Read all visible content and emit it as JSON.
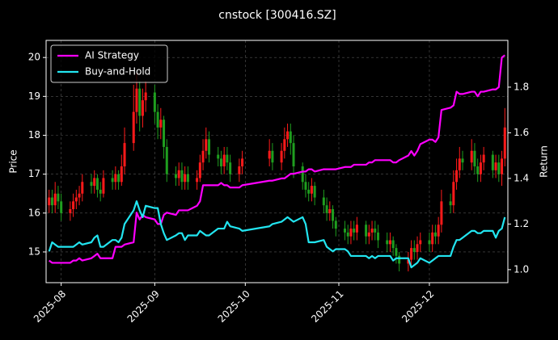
{
  "chart_data": {
    "type": "candlestick",
    "title": "cnstock [300416.SZ]",
    "ylabel": "Price",
    "y2label": "Return",
    "x": [
      "2025-07-28",
      "2025-07-29",
      "2025-07-30",
      "2025-07-31",
      "2025-08-01",
      "2025-08-04",
      "2025-08-05",
      "2025-08-06",
      "2025-08-07",
      "2025-08-08",
      "2025-08-11",
      "2025-08-12",
      "2025-08-13",
      "2025-08-14",
      "2025-08-15",
      "2025-08-18",
      "2025-08-19",
      "2025-08-20",
      "2025-08-21",
      "2025-08-22",
      "2025-08-25",
      "2025-08-26",
      "2025-08-27",
      "2025-08-28",
      "2025-08-29",
      "2025-09-01",
      "2025-09-02",
      "2025-09-03",
      "2025-09-04",
      "2025-09-05",
      "2025-09-08",
      "2025-09-09",
      "2025-09-10",
      "2025-09-11",
      "2025-09-12",
      "2025-09-15",
      "2025-09-16",
      "2025-09-17",
      "2025-09-18",
      "2025-09-19",
      "2025-09-22",
      "2025-09-23",
      "2025-09-24",
      "2025-09-25",
      "2025-09-26",
      "2025-09-29",
      "2025-09-30",
      "2025-10-09",
      "2025-10-10",
      "2025-10-13",
      "2025-10-14",
      "2025-10-15",
      "2025-10-16",
      "2025-10-17",
      "2025-10-20",
      "2025-10-21",
      "2025-10-22",
      "2025-10-23",
      "2025-10-24",
      "2025-10-27",
      "2025-10-28",
      "2025-10-29",
      "2025-10-30",
      "2025-10-31",
      "2025-11-03",
      "2025-11-04",
      "2025-11-05",
      "2025-11-06",
      "2025-11-07",
      "2025-11-10",
      "2025-11-11",
      "2025-11-12",
      "2025-11-13",
      "2025-11-14",
      "2025-11-17",
      "2025-11-18",
      "2025-11-19",
      "2025-11-20",
      "2025-11-21",
      "2025-11-24",
      "2025-11-25",
      "2025-11-26",
      "2025-11-27",
      "2025-11-28",
      "2025-12-01",
      "2025-12-02",
      "2025-12-03",
      "2025-12-04",
      "2025-12-05",
      "2025-12-08",
      "2025-12-09",
      "2025-12-10",
      "2025-12-11",
      "2025-12-12",
      "2025-12-15",
      "2025-12-16",
      "2025-12-17",
      "2025-12-18",
      "2025-12-19",
      "2025-12-22",
      "2025-12-23",
      "2025-12-24",
      "2025-12-25",
      "2025-12-26"
    ],
    "ohlc": {
      "up_color": "#ff1a1a",
      "down_color": "#1f9e1f",
      "open": [
        16.2,
        16.4,
        16.2,
        16.5,
        16.3,
        16.0,
        16.1,
        16.3,
        16.4,
        16.5,
        16.8,
        16.7,
        16.9,
        16.6,
        16.5,
        16.9,
        16.8,
        17.0,
        16.8,
        17.2,
        17.8,
        18.6,
        19.2,
        18.5,
        18.9,
        19.1,
        18.6,
        18.2,
        18.4,
        17.7,
        17.0,
        16.9,
        17.1,
        16.8,
        17.0,
        16.8,
        16.9,
        17.3,
        17.6,
        17.9,
        17.5,
        17.4,
        17.2,
        17.5,
        17.3,
        17.0,
        17.2,
        17.4,
        17.6,
        17.3,
        17.6,
        17.9,
        18.1,
        17.8,
        17.2,
        16.8,
        16.6,
        16.5,
        16.7,
        16.4,
        16.2,
        16.0,
        16.1,
        15.8,
        15.6,
        15.5,
        15.4,
        15.6,
        15.5,
        15.7,
        15.4,
        15.5,
        15.6,
        15.5,
        15.3,
        15.2,
        15.3,
        15.1,
        14.9,
        14.7,
        14.8,
        15.1,
        15.0,
        15.2,
        15.3,
        15.2,
        15.5,
        15.4,
        15.7,
        16.3,
        16.2,
        16.8,
        17.1,
        17.4,
        17.3,
        17.6,
        17.2,
        17.0,
        17.3,
        17.5,
        17.1,
        17.3,
        17.0,
        17.4
      ],
      "high": [
        16.6,
        16.6,
        16.8,
        16.7,
        16.5,
        16.3,
        16.5,
        16.6,
        16.7,
        17.0,
        17.0,
        17.1,
        17.0,
        16.8,
        17.1,
        17.1,
        17.2,
        17.1,
        17.5,
        18.2,
        19.3,
        19.6,
        19.4,
        19.2,
        19.4,
        19.3,
        18.8,
        18.7,
        18.5,
        17.9,
        17.2,
        17.3,
        17.3,
        17.2,
        17.2,
        17.1,
        17.5,
        17.9,
        18.2,
        18.1,
        17.7,
        17.6,
        17.7,
        17.7,
        17.5,
        17.4,
        17.6,
        17.9,
        17.8,
        17.8,
        18.2,
        18.3,
        18.3,
        18.0,
        17.3,
        17.0,
        16.8,
        16.9,
        16.8,
        16.6,
        16.4,
        16.3,
        16.2,
        15.9,
        15.8,
        15.7,
        15.8,
        15.8,
        15.9,
        15.8,
        15.7,
        15.8,
        15.8,
        15.7,
        15.5,
        15.5,
        15.4,
        15.2,
        15.0,
        15.0,
        15.3,
        15.3,
        15.4,
        15.5,
        15.5,
        15.7,
        15.7,
        15.9,
        16.6,
        16.5,
        17.1,
        17.4,
        17.7,
        17.6,
        17.9,
        17.8,
        17.4,
        17.5,
        17.7,
        17.6,
        17.5,
        17.5,
        17.6,
        18.7
      ],
      "low": [
        16.0,
        16.0,
        16.0,
        16.1,
        15.8,
        15.8,
        15.9,
        16.1,
        16.2,
        16.3,
        16.5,
        16.5,
        16.4,
        16.3,
        16.4,
        16.6,
        16.6,
        16.6,
        16.7,
        17.0,
        17.6,
        18.3,
        18.1,
        18.2,
        18.6,
        18.3,
        17.9,
        17.9,
        17.4,
        16.8,
        16.7,
        16.7,
        16.6,
        16.6,
        16.6,
        16.6,
        16.8,
        17.1,
        17.4,
        17.3,
        17.2,
        17.0,
        17.0,
        17.1,
        16.8,
        16.8,
        17.0,
        17.2,
        17.1,
        17.1,
        17.4,
        17.7,
        17.5,
        16.9,
        16.6,
        16.4,
        16.3,
        16.3,
        16.2,
        16.0,
        15.8,
        15.8,
        15.6,
        15.4,
        15.3,
        15.2,
        15.2,
        15.3,
        15.3,
        15.2,
        15.2,
        15.3,
        15.3,
        15.1,
        15.0,
        15.0,
        14.9,
        14.7,
        14.5,
        14.5,
        14.6,
        14.8,
        14.8,
        15.0,
        15.0,
        15.0,
        15.2,
        15.2,
        15.5,
        16.0,
        16.0,
        16.6,
        16.9,
        17.1,
        17.1,
        17.0,
        16.8,
        16.8,
        17.1,
        16.9,
        16.9,
        16.8,
        16.7,
        17.2
      ],
      "close": [
        16.4,
        16.2,
        16.5,
        16.3,
        16.0,
        16.1,
        16.3,
        16.4,
        16.5,
        16.8,
        16.7,
        16.9,
        16.6,
        16.5,
        16.9,
        16.8,
        17.0,
        16.8,
        17.2,
        17.8,
        18.6,
        19.2,
        18.5,
        18.9,
        19.1,
        18.6,
        18.2,
        18.4,
        17.7,
        17.0,
        16.9,
        17.1,
        16.8,
        17.0,
        16.8,
        16.9,
        17.3,
        17.6,
        17.9,
        17.5,
        17.4,
        17.2,
        17.5,
        17.3,
        17.0,
        17.2,
        17.4,
        17.6,
        17.3,
        17.6,
        17.9,
        18.1,
        17.8,
        17.2,
        16.8,
        16.6,
        16.5,
        16.7,
        16.4,
        16.2,
        16.0,
        16.1,
        15.8,
        15.6,
        15.5,
        15.4,
        15.6,
        15.5,
        15.7,
        15.4,
        15.5,
        15.6,
        15.5,
        15.3,
        15.2,
        15.3,
        15.1,
        14.9,
        14.7,
        14.8,
        15.1,
        15.0,
        15.2,
        15.3,
        15.2,
        15.5,
        15.4,
        15.7,
        16.3,
        16.2,
        16.8,
        17.1,
        17.4,
        17.3,
        17.6,
        17.2,
        17.0,
        17.3,
        17.5,
        17.1,
        17.3,
        17.0,
        17.4,
        18.2
      ]
    },
    "series": [
      {
        "name": "AI Strategy",
        "color": "#ff00ff",
        "axis": "y2",
        "values": [
          1.04,
          1.03,
          1.03,
          1.03,
          1.03,
          1.03,
          1.04,
          1.04,
          1.05,
          1.04,
          1.05,
          1.06,
          1.07,
          1.05,
          1.05,
          1.05,
          1.1,
          1.1,
          1.1,
          1.11,
          1.12,
          1.25,
          1.22,
          1.24,
          1.23,
          1.22,
          1.2,
          1.2,
          1.24,
          1.25,
          1.24,
          1.26,
          1.26,
          1.26,
          1.26,
          1.28,
          1.3,
          1.37,
          1.37,
          1.37,
          1.37,
          1.38,
          1.37,
          1.37,
          1.36,
          1.36,
          1.37,
          1.39,
          1.39,
          1.4,
          1.4,
          1.41,
          1.42,
          1.42,
          1.43,
          1.43,
          1.44,
          1.44,
          1.43,
          1.44,
          1.44,
          1.44,
          1.44,
          1.44,
          1.45,
          1.45,
          1.45,
          1.46,
          1.46,
          1.46,
          1.47,
          1.47,
          1.48,
          1.48,
          1.48,
          1.48,
          1.47,
          1.47,
          1.48,
          1.5,
          1.52,
          1.5,
          1.52,
          1.55,
          1.57,
          1.57,
          1.56,
          1.58,
          1.7,
          1.71,
          1.72,
          1.78,
          1.77,
          1.77,
          1.78,
          1.78,
          1.76,
          1.78,
          1.78,
          1.79,
          1.79,
          1.8,
          1.93,
          1.94
        ]
      },
      {
        "name": "Buy-and-Hold",
        "color": "#22e5f0",
        "axis": "y2",
        "values": [
          1.08,
          1.12,
          1.11,
          1.1,
          1.1,
          1.1,
          1.1,
          1.11,
          1.12,
          1.11,
          1.12,
          1.14,
          1.15,
          1.1,
          1.1,
          1.13,
          1.13,
          1.12,
          1.14,
          1.2,
          1.26,
          1.3,
          1.26,
          1.23,
          1.28,
          1.27,
          1.27,
          1.2,
          1.16,
          1.13,
          1.15,
          1.16,
          1.16,
          1.13,
          1.15,
          1.15,
          1.17,
          1.16,
          1.15,
          1.15,
          1.18,
          1.18,
          1.18,
          1.21,
          1.19,
          1.18,
          1.17,
          1.19,
          1.2,
          1.21,
          1.22,
          1.23,
          1.22,
          1.21,
          1.23,
          1.2,
          1.12,
          1.12,
          1.12,
          1.13,
          1.1,
          1.09,
          1.08,
          1.09,
          1.09,
          1.08,
          1.06,
          1.06,
          1.06,
          1.06,
          1.05,
          1.06,
          1.05,
          1.06,
          1.06,
          1.06,
          1.04,
          1.05,
          1.05,
          1.05,
          1.01,
          1.02,
          1.03,
          1.05,
          1.03,
          1.04,
          1.05,
          1.06,
          1.06,
          1.06,
          1.1,
          1.13,
          1.13,
          1.14,
          1.17,
          1.17,
          1.16,
          1.16,
          1.17,
          1.17,
          1.14,
          1.17,
          1.18,
          1.23
        ]
      }
    ],
    "xlim": [
      "2025-07-27",
      "2025-12-27"
    ],
    "xticks": [
      {
        "value": "2025-08-01",
        "label": "2025-08"
      },
      {
        "value": "2025-09-01",
        "label": "2025-09"
      },
      {
        "value": "2025-10-01",
        "label": "2025-10"
      },
      {
        "value": "2025-11-01",
        "label": "2025-11"
      },
      {
        "value": "2025-12-01",
        "label": "2025-12"
      }
    ],
    "ylim": [
      14.21,
      20.44
    ],
    "yticks": [
      15,
      16,
      17,
      18,
      19,
      20
    ],
    "y2lim": [
      0.943,
      2.005
    ],
    "y2ticks": [
      {
        "value": 1,
        "label": "1.0"
      },
      1.2,
      1.4,
      1.6,
      1.8
    ],
    "grid": true,
    "legend": "upper left"
  }
}
